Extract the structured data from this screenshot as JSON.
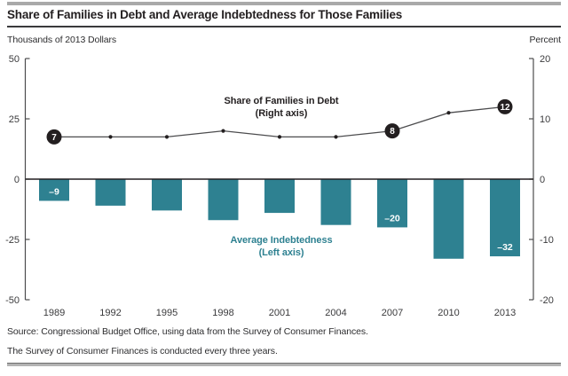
{
  "header": {
    "title": "Share of Families in Debt and Average Indebtedness for Those Families",
    "left_axis_caption": "Thousands of 2013 Dollars",
    "right_axis_caption": "Percent"
  },
  "chart_data": {
    "type": "combo-bar-line",
    "categories": [
      "1989",
      "1992",
      "1995",
      "1998",
      "2001",
      "2004",
      "2007",
      "2010",
      "2013"
    ],
    "series": [
      {
        "name": "Average Indebtedness",
        "axis_note": "(Left axis)",
        "type": "bar",
        "axis": "left",
        "color": "#2e8191",
        "values": [
          -9,
          -11,
          -13,
          -17,
          -14,
          -19,
          -20,
          -33,
          -32
        ],
        "data_labels": {
          "1989": "–9",
          "2007": "–20",
          "2013": "–32"
        }
      },
      {
        "name": "Share of Families in Debt",
        "axis_note": "(Right axis)",
        "type": "line",
        "axis": "right",
        "color": "#231f20",
        "values": [
          7,
          7,
          7,
          8,
          7,
          7,
          8,
          11,
          12
        ],
        "data_labels": {
          "1989": "7",
          "2007": "8",
          "2013": "12"
        }
      }
    ],
    "left_axis": {
      "label": "Thousands of 2013 Dollars",
      "range": [
        -50,
        50
      ],
      "ticks": [
        "50",
        "25",
        "0",
        "-25",
        "-50"
      ],
      "tick_values": [
        50,
        25,
        0,
        -25,
        -50
      ]
    },
    "right_axis": {
      "label": "Percent",
      "range": [
        -20,
        20
      ],
      "ticks": [
        "20",
        "10",
        "0",
        "-10",
        "-20"
      ],
      "tick_values": [
        20,
        10,
        0,
        -10,
        -20
      ]
    },
    "grid": false,
    "legend": "inline-annotations"
  },
  "footer": {
    "source_line1": "Source: Congressional Budget Office, using data from the Survey of Consumer Finances.",
    "source_line2": "The Survey of Consumer Finances is conducted every three years."
  },
  "colors": {
    "teal": "#2e8191",
    "dark": "#231f20",
    "axis_gray": "#4c4c4e",
    "rule_gray": "#a9a9a9"
  }
}
